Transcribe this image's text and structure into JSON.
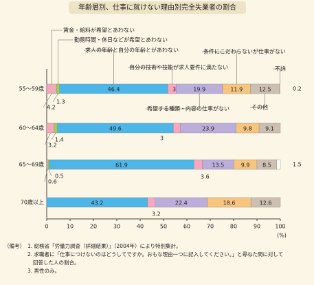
{
  "chart_data": {
    "type": "stacked-bar-horizontal",
    "title": "年齢層別、仕事に就けない理由別完全失業者の割合",
    "categories": [
      "55～59歳",
      "60～64歳",
      "65～69歳",
      "70歳以上"
    ],
    "series": [
      {
        "name": "賃金・給料が希望とあわない",
        "color": "#f4a9bb",
        "values": [
          4.2,
          3.2,
          0.6,
          null
        ]
      },
      {
        "name": "勤務時間・休日などが希望とあわない",
        "color": "#9ccc5a",
        "values": [
          1.3,
          1.4,
          0.5,
          null
        ]
      },
      {
        "name": "求人の年齢と自分の年齢とがあわない",
        "color": "#4db6e8",
        "values": [
          46.4,
          49.6,
          61.9,
          43.2
        ]
      },
      {
        "name": "自分の技術や技能が求人要件に満たない",
        "color": "#f7a8bf",
        "values": [
          3.5,
          3.0,
          3.6,
          3.2
        ]
      },
      {
        "name": "希望する種類・内容の仕事がない",
        "color": "#bcaedb",
        "values": [
          19.9,
          23.9,
          13.5,
          22.4
        ]
      },
      {
        "name": "条件にこだわらないが仕事がない",
        "color": "#f8c57e",
        "values": [
          11.9,
          9.8,
          9.9,
          18.6
        ]
      },
      {
        "name": "その他",
        "color": "#cdbfb2",
        "values": [
          12.5,
          9.1,
          8.5,
          12.6
        ]
      },
      {
        "name": "不詳",
        "color": "#ffffff",
        "values": [
          0.2,
          null,
          1.5,
          null
        ]
      }
    ],
    "xlim": [
      0,
      100
    ],
    "xticks": [
      0,
      10,
      20,
      30,
      40,
      50,
      60,
      70,
      80,
      90,
      100
    ],
    "x_unit": "(%)",
    "notes_label": "（備考）",
    "notes": [
      "1. 総務省「労働力調査（詳細結果）」（2004年）により特別集計。",
      "2. 求職者に「仕事につけないのはどうしてですか。おもな理由一つに記入してください。」と尋ねた問に対して",
      "回答した人の割合。",
      "3. 男性のみ。"
    ]
  }
}
